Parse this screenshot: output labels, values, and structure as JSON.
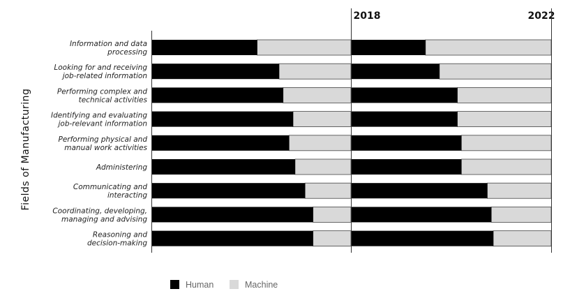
{
  "chart_data": {
    "type": "bar",
    "orientation": "horizontal",
    "stacked": "percent",
    "ylabel": "Fields of Manufacturing",
    "periods": [
      "2018",
      "2022"
    ],
    "categories": [
      [
        "Information and data",
        "processing"
      ],
      [
        "Looking for and receiving",
        "job-related information"
      ],
      [
        "Performing complex and",
        "technical activities"
      ],
      [
        "Identifying and evaluating",
        "job-relevant information"
      ],
      [
        "Performing physical and",
        "manual work activities"
      ],
      [
        "Administering"
      ],
      [
        "Communicating and",
        "interacting"
      ],
      [
        "Coordinating, developing,",
        "managing and advising"
      ],
      [
        "Reasoning and",
        "decision-making"
      ]
    ],
    "series": [
      {
        "name": "Human",
        "color": "#000000",
        "values_2018": [
          53,
          64,
          66,
          71,
          69,
          72,
          77,
          81,
          81
        ],
        "values_2022": [
          37,
          44,
          53,
          53,
          55,
          55,
          68,
          70,
          71
        ]
      },
      {
        "name": "Machine",
        "color": "#d9d9d9",
        "values_2018": [
          47,
          36,
          34,
          29,
          31,
          28,
          23,
          19,
          19
        ],
        "values_2022": [
          63,
          56,
          47,
          47,
          45,
          45,
          32,
          30,
          29
        ]
      }
    ],
    "xlim": [
      0,
      100
    ],
    "legend_position": "bottom-left",
    "grid": false
  }
}
